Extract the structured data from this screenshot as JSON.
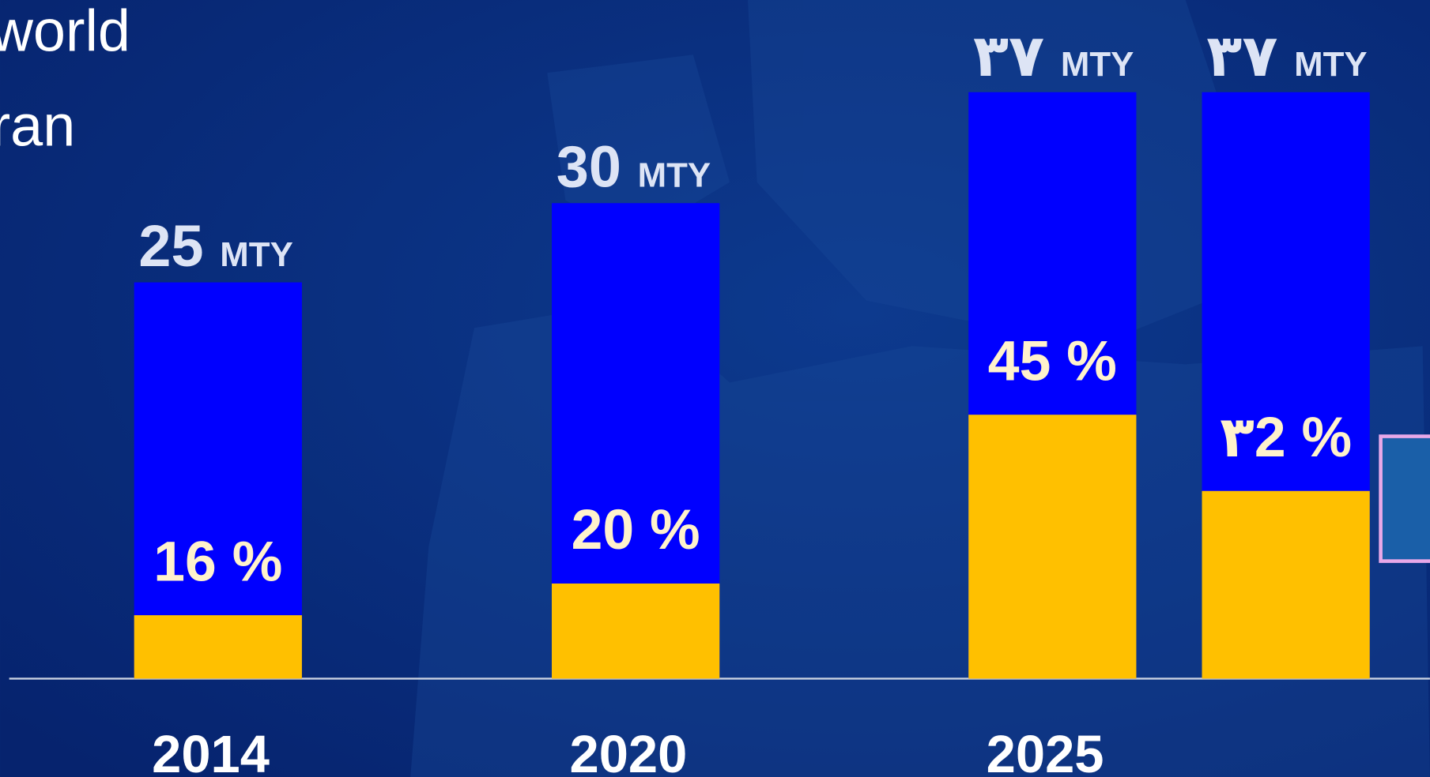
{
  "chart_data": {
    "type": "bar",
    "title_lines": [
      "world",
      "ran"
    ],
    "categories": [
      "2014",
      "2020",
      "2025",
      null
    ],
    "totals": {
      "values": [
        25,
        30,
        37,
        37
      ],
      "value_labels": [
        "25",
        "30",
        "۳۷",
        "۳۷"
      ],
      "unit": "MTY",
      "color": "#0000ff"
    },
    "shares": {
      "values": [
        16,
        20,
        45,
        32
      ],
      "value_labels": [
        "16 %",
        "20 %",
        "45 %",
        "۳2 %"
      ],
      "color": "#ffc000"
    },
    "ylim": [
      0,
      40
    ]
  }
}
